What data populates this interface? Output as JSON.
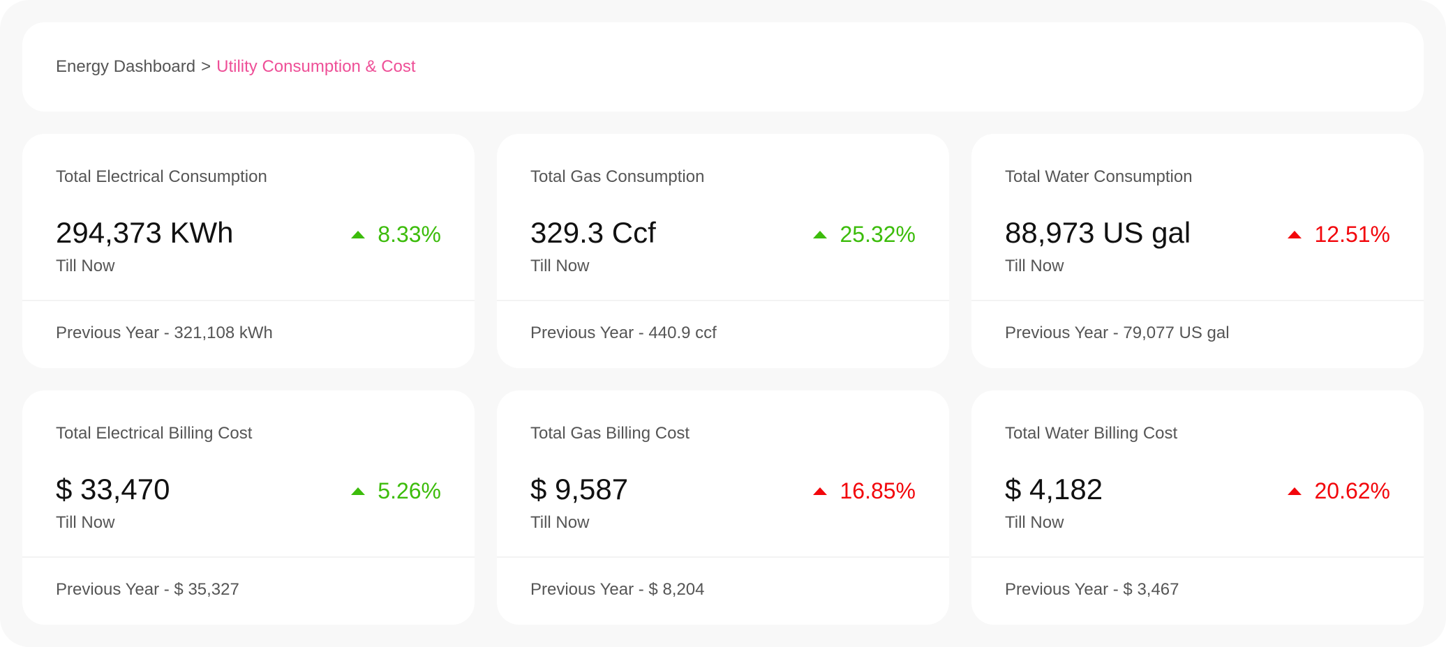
{
  "breadcrumb": {
    "root": "Energy Dashboard",
    "separator": ">",
    "current": "Utility Consumption & Cost"
  },
  "cards": [
    {
      "title": "Total Electrical Consumption",
      "value": "294,373 KWh",
      "sub": "Till Now",
      "trend": "8.33%",
      "trend_direction": "up",
      "trend_color": "#3cbc0b",
      "trend_icon": "triangle-up-icon",
      "footer": "Previous Year - 321,108 kWh"
    },
    {
      "title": "Total Gas Consumption",
      "value": "329.3 Ccf",
      "sub": "Till Now",
      "trend": "25.32%",
      "trend_direction": "up",
      "trend_color": "#3cbc0b",
      "trend_icon": "triangle-up-icon",
      "footer": "Previous Year - 440.9 ccf"
    },
    {
      "title": "Total Water Consumption",
      "value": "88,973 US gal",
      "sub": "Till Now",
      "trend": "12.51%",
      "trend_direction": "up",
      "trend_color": "#f2060b",
      "trend_icon": "triangle-up-icon",
      "footer": "Previous Year - 79,077 US gal"
    },
    {
      "title": "Total Electrical Billing Cost",
      "value": "$ 33,470",
      "sub": "Till Now",
      "trend": "5.26%",
      "trend_direction": "up",
      "trend_color": "#3cbc0b",
      "trend_icon": "triangle-up-icon",
      "footer": "Previous Year - $ 35,327"
    },
    {
      "title": "Total Gas Billing Cost",
      "value": "$ 9,587",
      "sub": "Till Now",
      "trend": "16.85%",
      "trend_direction": "up",
      "trend_color": "#f2060b",
      "trend_icon": "triangle-up-icon",
      "footer": "Previous Year - $ 8,204"
    },
    {
      "title": "Total Water Billing Cost",
      "value": "$ 4,182",
      "sub": "Till Now",
      "trend": "20.62%",
      "trend_direction": "up",
      "trend_color": "#f2060b",
      "trend_icon": "triangle-up-icon",
      "footer": "Previous Year - $ 3,467"
    }
  ]
}
